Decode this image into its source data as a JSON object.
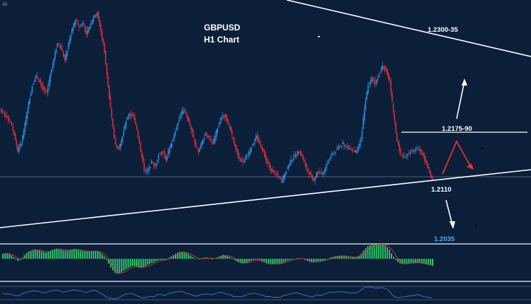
{
  "chart_data": {
    "type": "candlestick",
    "title": "GBPUSD",
    "subtitle": "H1 Chart",
    "corner_value": ".65",
    "colors": {
      "up": "#2f8fe0",
      "down": "#e0303e",
      "background": "#0c1f38",
      "trendline": "#ffffff",
      "osc_pos": "#2bc46a",
      "osc_signal": "#d33a3a",
      "rsi": "#3d78d6"
    },
    "levels": [
      {
        "label": "1.2300-35",
        "price": 1.2318,
        "color": "#ffffff"
      },
      {
        "label": "1.2175-90",
        "price": 1.2183,
        "color": "#ffffff"
      },
      {
        "label": "1.2110",
        "price": 1.211,
        "color": "#ffffff"
      },
      {
        "label": "1.2035",
        "price": 1.2035,
        "color": "#4aa8ff"
      }
    ],
    "close": [
      1.22,
      1.2196,
      1.2188,
      1.2172,
      1.215,
      1.2162,
      1.2186,
      1.2214,
      1.2236,
      1.225,
      1.2244,
      1.2232,
      1.2226,
      1.2252,
      1.2272,
      1.2292,
      1.2286,
      1.227,
      1.229,
      1.231,
      1.2323,
      1.2314,
      1.232,
      1.2303,
      1.2316,
      1.2328,
      1.2332,
      1.2308,
      1.2282,
      1.2234,
      1.2194,
      1.2158,
      1.2152,
      1.217,
      1.219,
      1.22,
      1.2196,
      1.2178,
      1.2152,
      1.2126,
      1.2124,
      1.2136,
      1.213,
      1.2146,
      1.215,
      1.214,
      1.2154,
      1.2166,
      1.2182,
      1.2198,
      1.2204,
      1.2194,
      1.218,
      1.216,
      1.215,
      1.2162,
      1.2172,
      1.2168,
      1.216,
      1.2176,
      1.219,
      1.22,
      1.219,
      1.2176,
      1.216,
      1.2144,
      1.2136,
      1.214,
      1.2148,
      1.216,
      1.217,
      1.216,
      1.215,
      1.2136,
      1.2126,
      1.2122,
      1.2118,
      1.211,
      1.2122,
      1.2132,
      1.214,
      1.2146,
      1.215,
      1.214,
      1.2128,
      1.2118,
      1.2112,
      1.2124,
      1.212,
      1.2126,
      1.2138,
      1.2146,
      1.215,
      1.2156,
      1.216,
      1.2156,
      1.2154,
      1.215,
      1.215,
      1.2166,
      1.2206,
      1.2238,
      1.2246,
      1.224,
      1.2252,
      1.2262,
      1.2256,
      1.2242,
      1.22,
      1.2164,
      1.2146,
      1.2142,
      1.2148,
      1.215,
      1.2152,
      1.2154,
      1.2148,
      1.2136,
      1.2124,
      1.2112
    ],
    "osc": [
      0.3,
      0.35,
      0.3,
      0.1,
      -0.15,
      -0.05,
      0.25,
      0.45,
      0.55,
      0.6,
      0.55,
      0.45,
      0.4,
      0.5,
      0.6,
      0.65,
      0.6,
      0.5,
      0.55,
      0.6,
      0.65,
      0.55,
      0.5,
      0.45,
      0.48,
      0.5,
      0.5,
      0.4,
      0.2,
      -0.2,
      -0.6,
      -0.9,
      -1.0,
      -0.85,
      -0.7,
      -0.55,
      -0.45,
      -0.5,
      -0.6,
      -0.55,
      -0.4,
      -0.3,
      -0.2,
      -0.1,
      -0.05,
      -0.1,
      0.05,
      0.2,
      0.35,
      0.45,
      0.45,
      0.35,
      0.2,
      0.05,
      -0.05,
      0.0,
      0.1,
      0.05,
      -0.05,
      0.05,
      0.15,
      0.25,
      0.2,
      0.1,
      -0.05,
      -0.2,
      -0.3,
      -0.3,
      -0.2,
      -0.1,
      -0.05,
      -0.1,
      -0.2,
      -0.3,
      -0.35,
      -0.35,
      -0.3,
      -0.3,
      -0.2,
      -0.1,
      -0.05,
      0.0,
      0.05,
      0.0,
      -0.1,
      -0.2,
      -0.25,
      -0.15,
      -0.15,
      -0.1,
      0.0,
      0.1,
      0.15,
      0.2,
      0.2,
      0.15,
      0.1,
      0.1,
      0.1,
      0.25,
      0.55,
      0.8,
      0.9,
      0.9,
      0.95,
      0.95,
      0.85,
      0.6,
      0.2,
      -0.15,
      -0.3,
      -0.35,
      -0.3,
      -0.25,
      -0.25,
      -0.25,
      -0.3,
      -0.35,
      -0.4,
      -0.45
    ],
    "rsi": [
      52,
      50,
      47,
      42,
      38,
      44,
      52,
      58,
      62,
      63,
      60,
      56,
      54,
      60,
      64,
      68,
      64,
      58,
      62,
      66,
      69,
      63,
      64,
      56,
      60,
      64,
      64,
      54,
      44,
      32,
      26,
      24,
      28,
      38,
      46,
      50,
      48,
      42,
      34,
      28,
      30,
      38,
      36,
      44,
      46,
      40,
      48,
      52,
      56,
      60,
      60,
      52,
      46,
      38,
      36,
      44,
      48,
      46,
      42,
      50,
      54,
      56,
      50,
      44,
      38,
      34,
      34,
      38,
      44,
      50,
      52,
      46,
      42,
      36,
      34,
      34,
      32,
      30,
      40,
      46,
      50,
      52,
      53,
      46,
      40,
      36,
      34,
      44,
      42,
      46,
      52,
      56,
      56,
      58,
      58,
      56,
      54,
      52,
      52,
      62,
      76,
      82,
      80,
      76,
      78,
      80,
      74,
      66,
      42,
      32,
      30,
      32,
      36,
      40,
      42,
      44,
      40,
      34,
      30,
      28
    ]
  }
}
